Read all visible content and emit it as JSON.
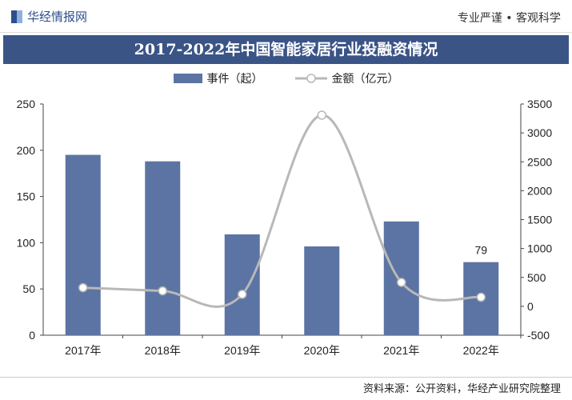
{
  "header": {
    "brand": "华经情报网",
    "slogan": "专业严谨 • 客观科学"
  },
  "footer": {
    "source": "资料来源：公开资料，华经产业研究院整理"
  },
  "chart_data": {
    "type": "bar+line",
    "title": "2017-2022年中国智能家居行业投融资情况",
    "categories": [
      "2017年",
      "2018年",
      "2019年",
      "2020年",
      "2021年",
      "2022年"
    ],
    "series": [
      {
        "name": "事件（起）",
        "type": "bar",
        "axis": "left",
        "values": [
          195,
          188,
          109,
          96,
          123,
          79
        ],
        "color": "#5b74a3"
      },
      {
        "name": "金额（亿元）",
        "type": "line",
        "axis": "right",
        "values": [
          322,
          267,
          207,
          3307,
          414,
          157
        ],
        "color": "#b8b8b8"
      }
    ],
    "data_labels": {
      "2022年": "79"
    },
    "y_left": {
      "range": [
        0,
        250
      ],
      "ticks": [
        "0",
        "50",
        "100",
        "150",
        "200",
        "250"
      ]
    },
    "y_right": {
      "range": [
        -500,
        3500
      ],
      "ticks": [
        "-500",
        "0",
        "500",
        "1000",
        "1500",
        "2000",
        "2500",
        "3000",
        "3500"
      ]
    },
    "grid": false,
    "legend": "top"
  }
}
